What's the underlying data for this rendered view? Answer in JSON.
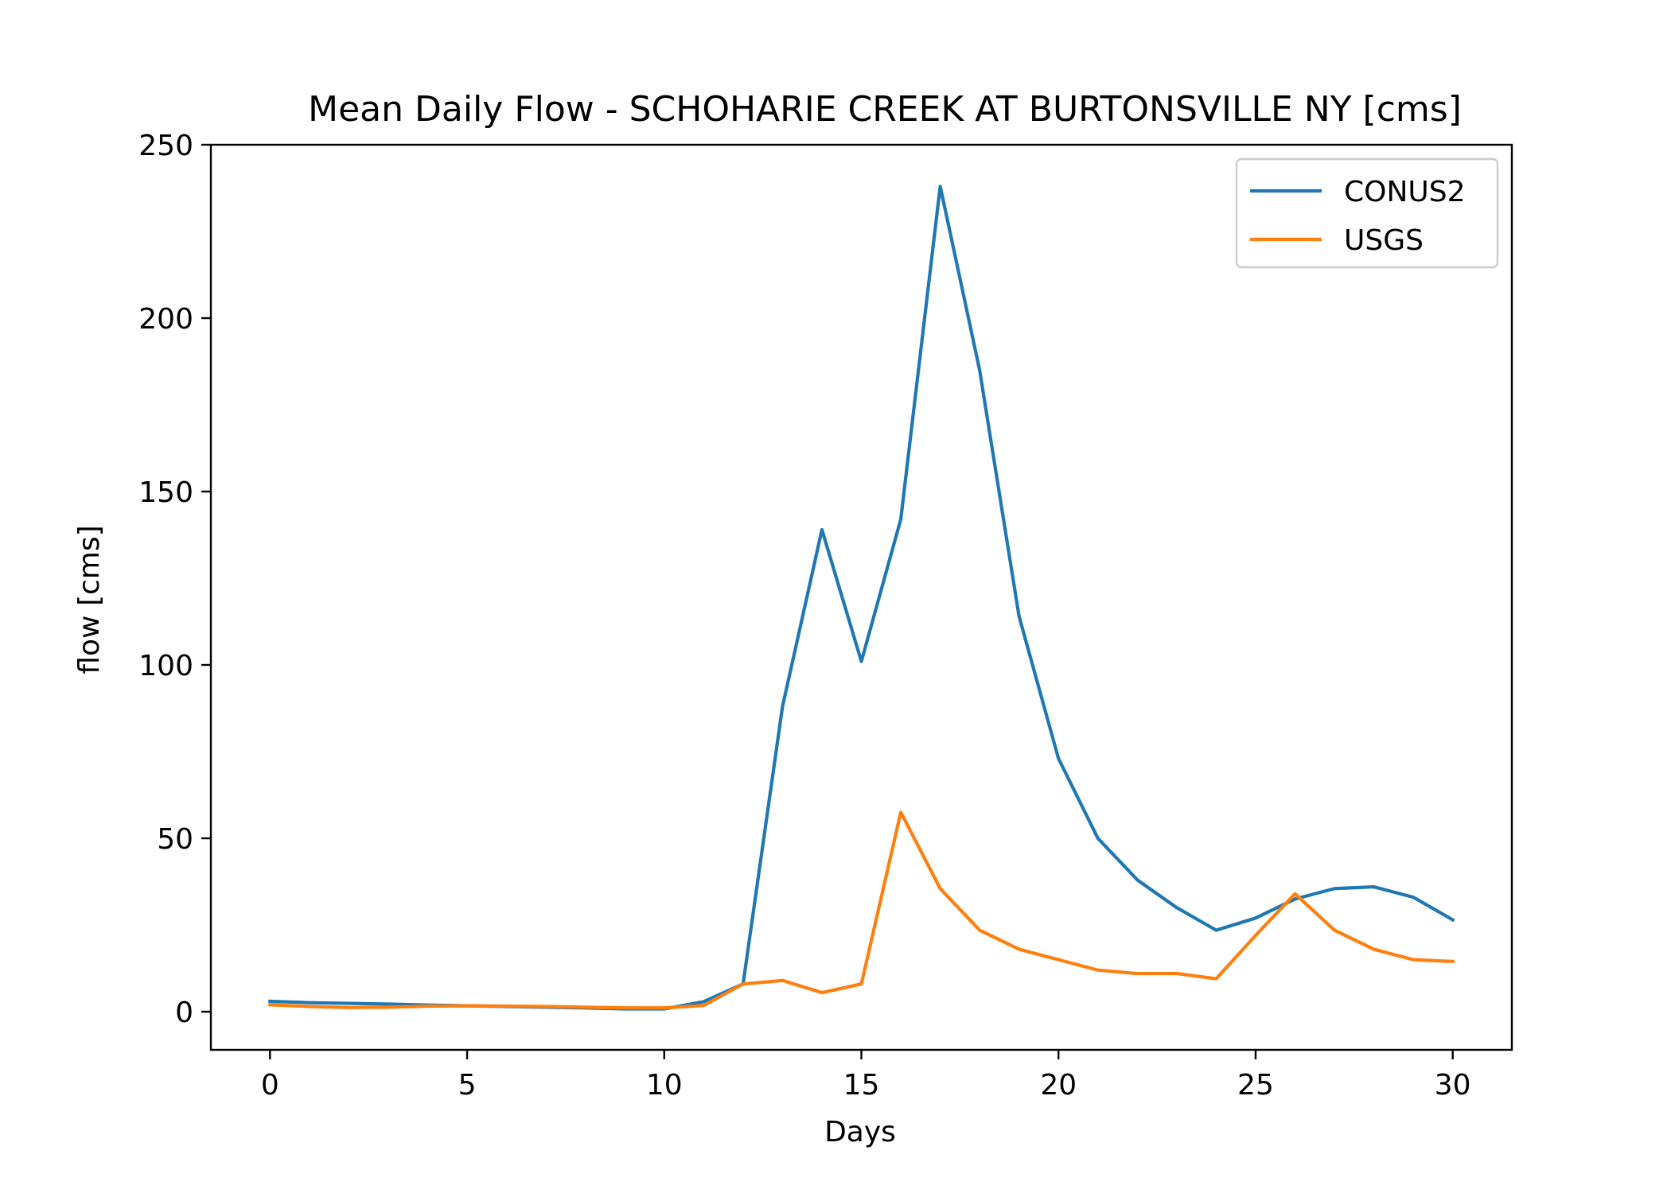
{
  "chart_data": {
    "type": "line",
    "title": "Mean Daily Flow - SCHOHARIE CREEK AT BURTONSVILLE NY [cms]",
    "xlabel": "Days",
    "ylabel": "flow [cms]",
    "xlim": [
      -1.5,
      31.5
    ],
    "ylim": [
      -11,
      250
    ],
    "xticks": [
      0,
      5,
      10,
      15,
      20,
      25,
      30
    ],
    "yticks": [
      0,
      50,
      100,
      150,
      200,
      250
    ],
    "grid": false,
    "legend_position": "top-right",
    "x": [
      0,
      1,
      2,
      3,
      4,
      5,
      6,
      7,
      8,
      9,
      10,
      11,
      12,
      13,
      14,
      15,
      16,
      17,
      18,
      19,
      20,
      21,
      22,
      23,
      24,
      25,
      26,
      27,
      28,
      29,
      30
    ],
    "series": [
      {
        "name": "CONUS2",
        "color": "#1f77b4",
        "values": [
          3.0,
          2.6,
          2.4,
          2.2,
          1.9,
          1.7,
          1.5,
          1.3,
          1.1,
          0.8,
          0.8,
          2.9,
          8.0,
          88,
          139,
          101,
          142,
          238,
          185,
          114,
          73,
          50,
          38,
          30,
          23.5,
          27,
          32.5,
          35.5,
          36,
          33,
          26.5
        ]
      },
      {
        "name": "USGS",
        "color": "#ff7f0e",
        "values": [
          2.0,
          1.5,
          1.2,
          1.3,
          1.6,
          1.7,
          1.6,
          1.5,
          1.3,
          1.1,
          1.1,
          1.8,
          8.0,
          9.0,
          5.5,
          8.0,
          57.5,
          35.5,
          23.5,
          18,
          15,
          12,
          11,
          11,
          9.5,
          22,
          34,
          23.5,
          18,
          15,
          14.5
        ]
      }
    ]
  }
}
